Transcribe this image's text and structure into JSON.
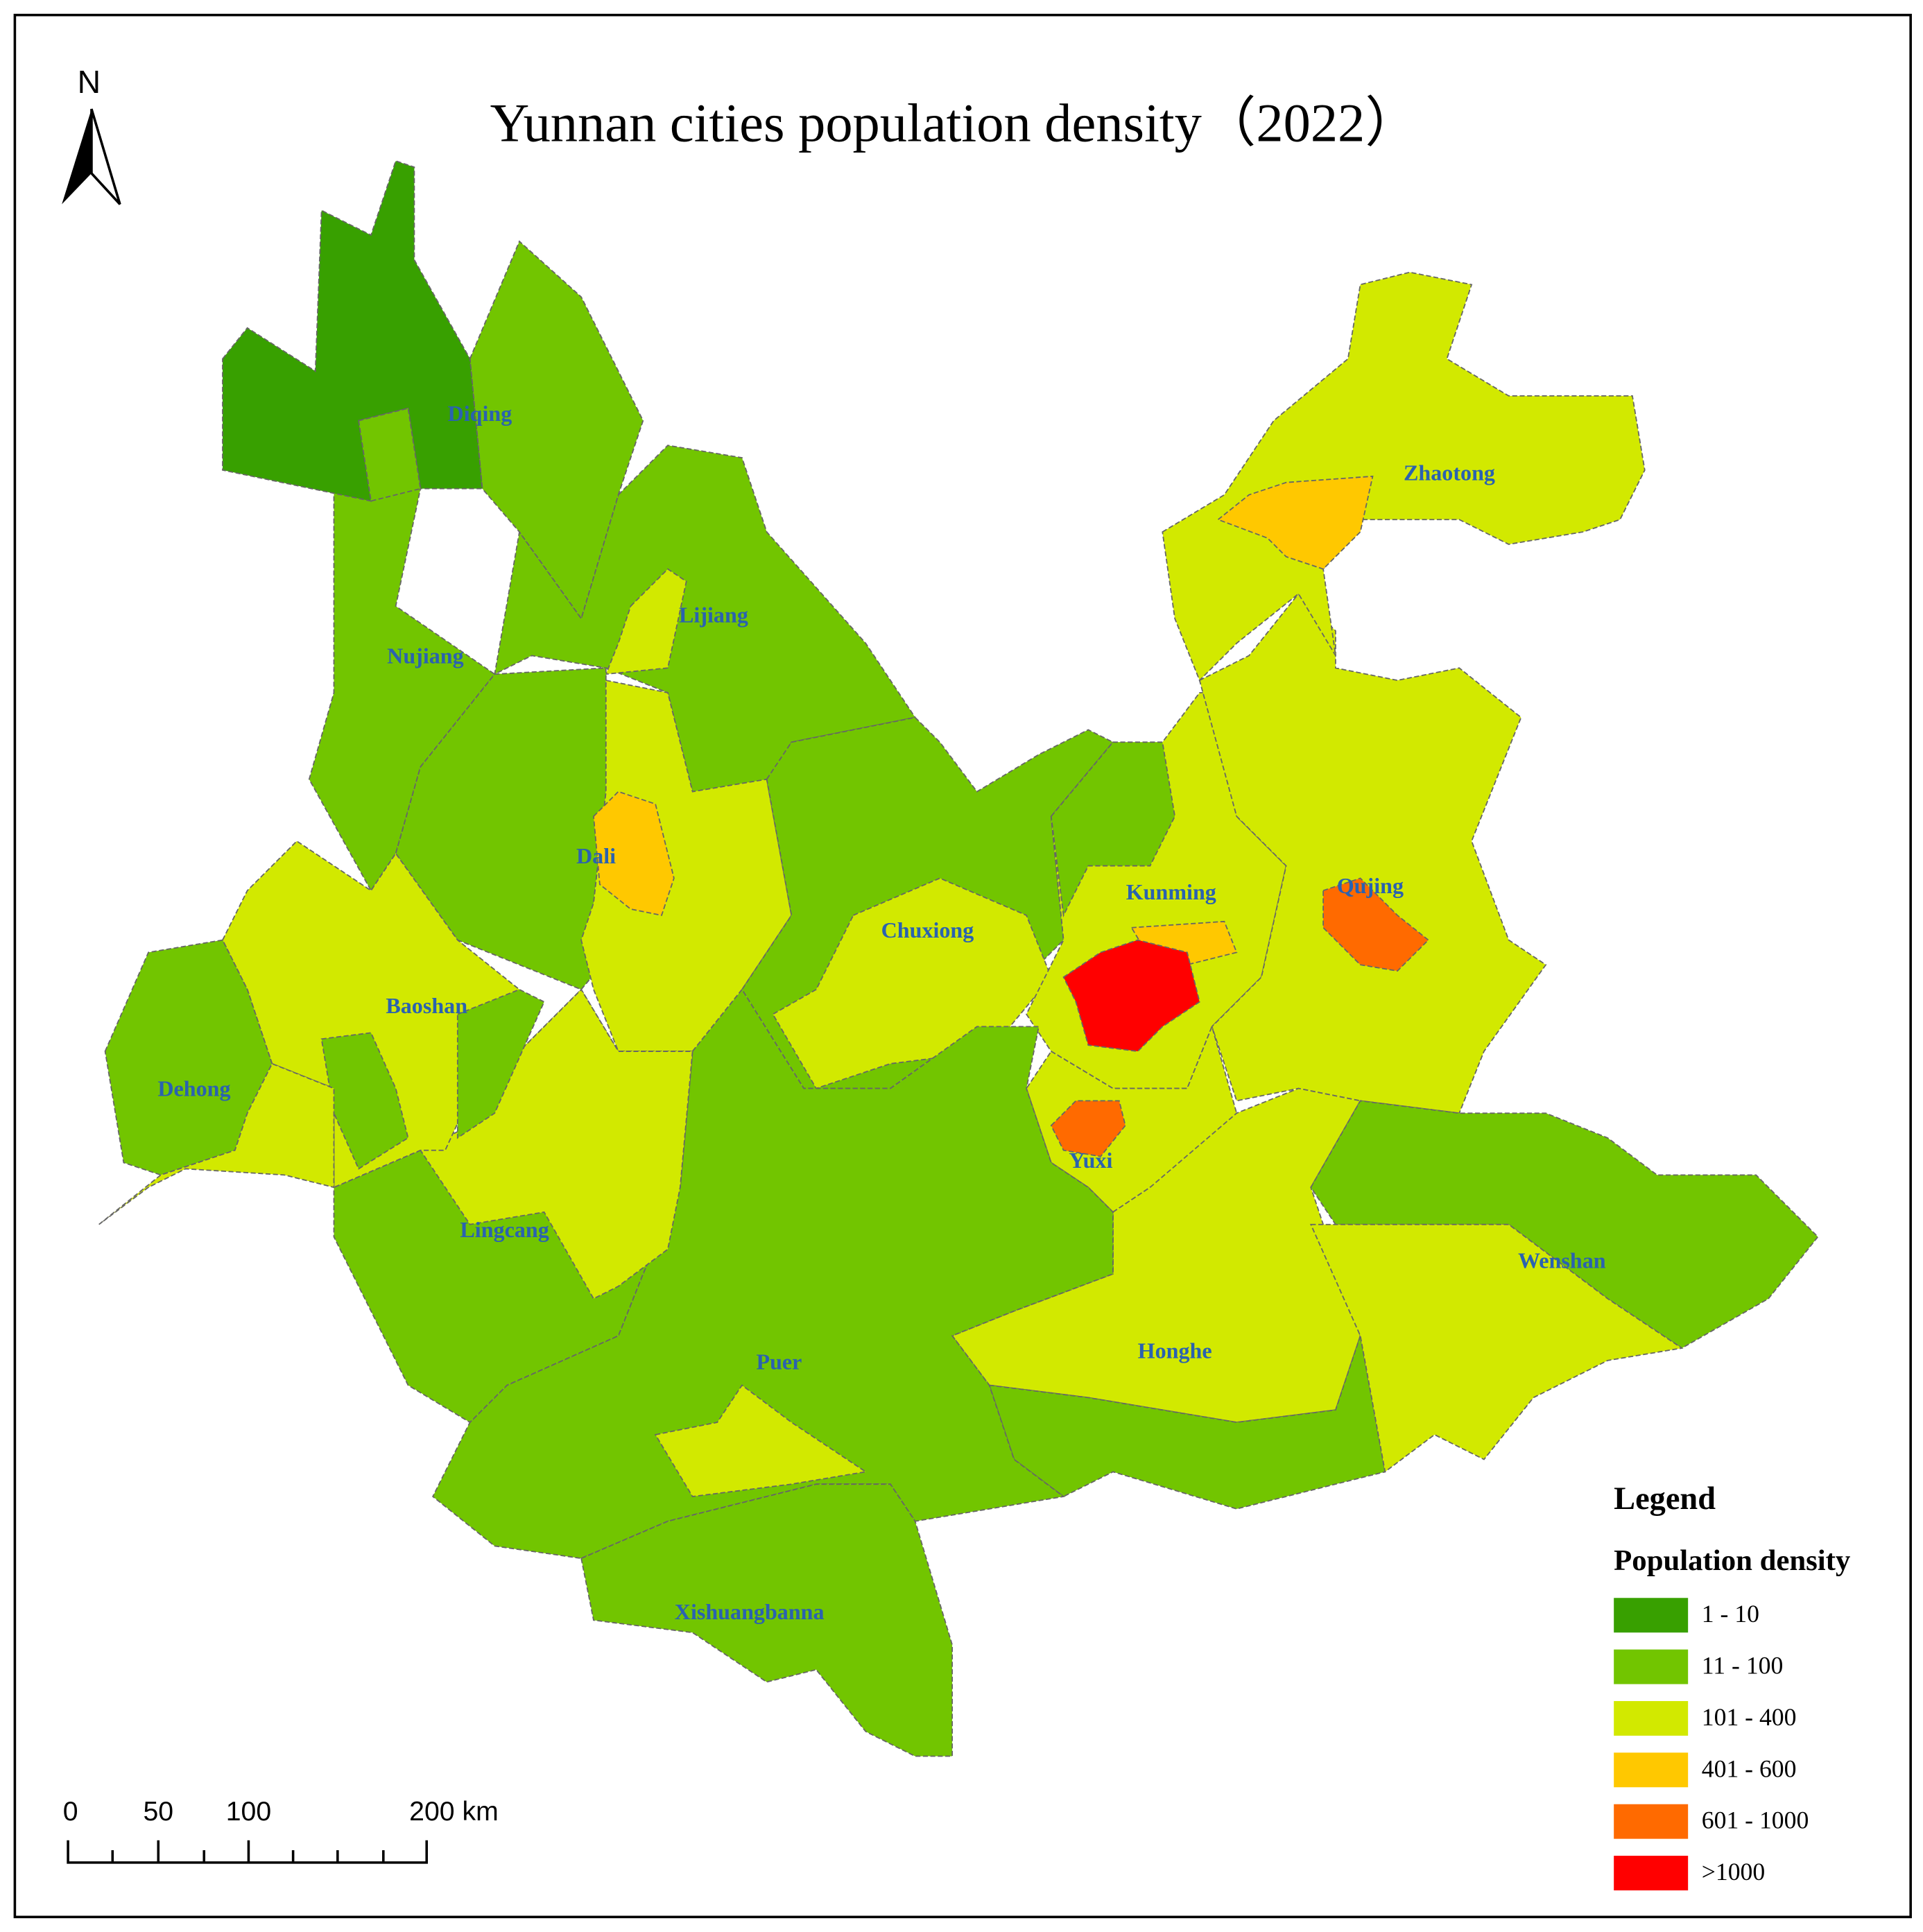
{
  "title": "Yunnan cities population density（2022）",
  "north": "N",
  "cities": [
    {
      "name": "Diqing"
    },
    {
      "name": "Zhaotong"
    },
    {
      "name": "Lijiang"
    },
    {
      "name": "Nujiang"
    },
    {
      "name": "Dali"
    },
    {
      "name": "Kunming"
    },
    {
      "name": "Qujing"
    },
    {
      "name": "Chuxiong"
    },
    {
      "name": "Baoshan"
    },
    {
      "name": "Dehong"
    },
    {
      "name": "Yuxi"
    },
    {
      "name": "Lingcang"
    },
    {
      "name": "Wenshan"
    },
    {
      "name": "Honghe"
    },
    {
      "name": "Puer"
    },
    {
      "name": "Xishuangbanna"
    }
  ],
  "legend": {
    "title": "Legend",
    "subtitle": "Population density",
    "classes": [
      {
        "label": "1 - 10",
        "color": "#38a000"
      },
      {
        "label": "11 - 100",
        "color": "#72c500"
      },
      {
        "label": "101 - 400",
        "color": "#d2e900"
      },
      {
        "label": "401 - 600",
        "color": "#ffc800"
      },
      {
        "label": "601 - 1000",
        "color": "#ff6a00"
      },
      {
        "label": ">1000",
        "color": "#ff0000"
      }
    ]
  },
  "scale_bar": {
    "labels": [
      "0",
      "50",
      "100",
      "200 km"
    ]
  }
}
